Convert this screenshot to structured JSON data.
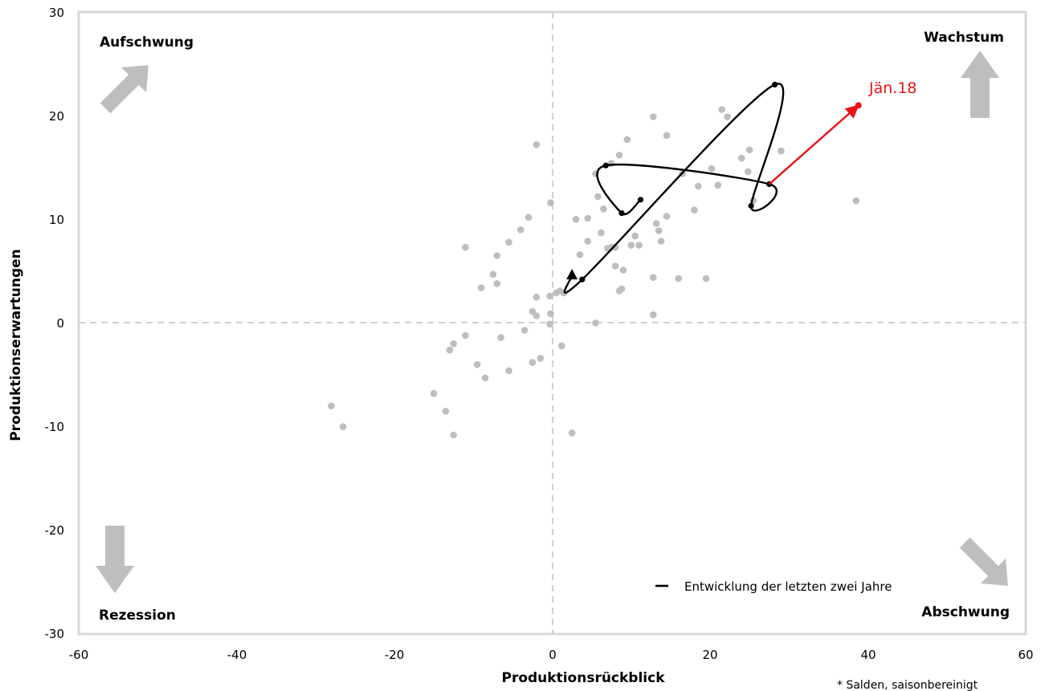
{
  "chart_data": {
    "type": "scatter",
    "title": "",
    "xlabel": "Produktionsrückblick",
    "ylabel": "Produktionserwartungen",
    "xlim": [
      -60,
      60
    ],
    "ylim": [
      -30,
      30
    ],
    "x_ticks": [
      "-60",
      "-40",
      "-20",
      "0",
      "20",
      "40",
      "60"
    ],
    "y_ticks": [
      "30",
      "20",
      "10",
      "0",
      "-10",
      "-20",
      "-30"
    ],
    "grid": false,
    "zero_lines": "dashed",
    "quadrants": {
      "top_left": "Aufschwung",
      "top_right": "Wachstum",
      "bottom_left": "Rezession",
      "bottom_right": "Abschwung"
    },
    "legend": {
      "label": "Entwicklung der letzten zwei Jahre",
      "placement": "bottom-right"
    },
    "footnote": "* Salden, saisonbereinigt",
    "callout": {
      "label": "Jän.18",
      "color": "#e8141a"
    },
    "colors": {
      "scatter": "#bebebe",
      "path": "#000000",
      "latest": "#e8141a",
      "arrows": "#bebebe",
      "frame": "#d9d9d9",
      "zero": "#d0d0d0"
    },
    "series": [
      {
        "points": [
          [
            -28,
            -8
          ],
          [
            -26.5,
            -10
          ],
          [
            -15,
            -6.8
          ],
          [
            -13.5,
            -8.5
          ],
          [
            -13,
            -2.6
          ],
          [
            -12.5,
            -10.8
          ],
          [
            -12.5,
            -2
          ],
          [
            -11,
            7.3
          ],
          [
            -11,
            -1.2
          ],
          [
            -9.5,
            -4
          ],
          [
            -9,
            3.4
          ],
          [
            -8.5,
            -5.3
          ],
          [
            -7,
            6.5
          ],
          [
            -7.5,
            4.7
          ],
          [
            -7,
            3.8
          ],
          [
            -6.5,
            -1.4
          ],
          [
            -5.5,
            7.8
          ],
          [
            -5.5,
            -4.6
          ],
          [
            -4,
            9
          ],
          [
            -3.5,
            -0.7
          ],
          [
            -3,
            10.2
          ],
          [
            -2.5,
            1.1
          ],
          [
            -2.5,
            -3.8
          ],
          [
            -2,
            0.7
          ],
          [
            -2,
            2.5
          ],
          [
            -1.5,
            -3.4
          ],
          [
            -2,
            17.2
          ],
          [
            -0.2,
            11.6
          ],
          [
            -0.3,
            2.6
          ],
          [
            -0.2,
            0.9
          ],
          [
            -0.3,
            -0.1
          ],
          [
            0.5,
            2.9
          ],
          [
            1,
            3.1
          ],
          [
            1.5,
            2.9
          ],
          [
            1.2,
            -2.2
          ],
          [
            2.5,
            -10.6
          ],
          [
            3,
            10
          ],
          [
            3.5,
            6.6
          ],
          [
            4.5,
            10.1
          ],
          [
            4.5,
            7.9
          ],
          [
            5.5,
            14.4
          ],
          [
            5.8,
            12.2
          ],
          [
            5.5,
            0
          ],
          [
            6.2,
            8.7
          ],
          [
            6.5,
            11
          ],
          [
            7,
            7.2
          ],
          [
            7.5,
            15.4
          ],
          [
            8,
            7.3
          ],
          [
            7.5,
            7.3
          ],
          [
            8,
            5.5
          ],
          [
            8.5,
            16.2
          ],
          [
            8.5,
            3.1
          ],
          [
            8.8,
            3.3
          ],
          [
            9,
            5.1
          ],
          [
            9.5,
            17.7
          ],
          [
            10,
            7.5
          ],
          [
            10.5,
            8.4
          ],
          [
            11,
            7.5
          ],
          [
            12.8,
            19.9
          ],
          [
            12.8,
            4.4
          ],
          [
            12.8,
            0.8
          ],
          [
            13.2,
            9.6
          ],
          [
            13.5,
            8.9
          ],
          [
            13.8,
            7.9
          ],
          [
            14.5,
            18.1
          ],
          [
            14.5,
            10.3
          ],
          [
            16,
            4.3
          ],
          [
            16.5,
            14.4
          ],
          [
            18,
            10.9
          ],
          [
            18.5,
            13.2
          ],
          [
            19.5,
            4.3
          ],
          [
            20.2,
            14.9
          ],
          [
            21,
            13.3
          ],
          [
            21.5,
            20.6
          ],
          [
            22.2,
            19.9
          ],
          [
            24,
            15.9
          ],
          [
            24.8,
            14.6
          ],
          [
            25,
            16.7
          ],
          [
            25.5,
            11.8
          ],
          [
            29,
            16.6
          ],
          [
            38.5,
            11.8
          ]
        ]
      },
      {
        "name": "Entwicklung der letzten zwei Jahre",
        "points": [
          [
            2.5,
            4.6
          ],
          [
            3.8,
            4.2
          ],
          [
            28.2,
            23
          ],
          [
            25.2,
            11.3
          ],
          [
            27.5,
            13.4
          ],
          [
            6.8,
            15.2
          ],
          [
            8.8,
            10.6
          ],
          [
            11.2,
            11.9
          ]
        ],
        "marked_points": [
          1,
          2,
          3,
          4,
          5,
          6,
          7
        ],
        "start_marker": "triangle"
      },
      {
        "name": "Jän.18",
        "points": [
          [
            27.5,
            13.4
          ],
          [
            38.8,
            21
          ]
        ]
      }
    ]
  }
}
